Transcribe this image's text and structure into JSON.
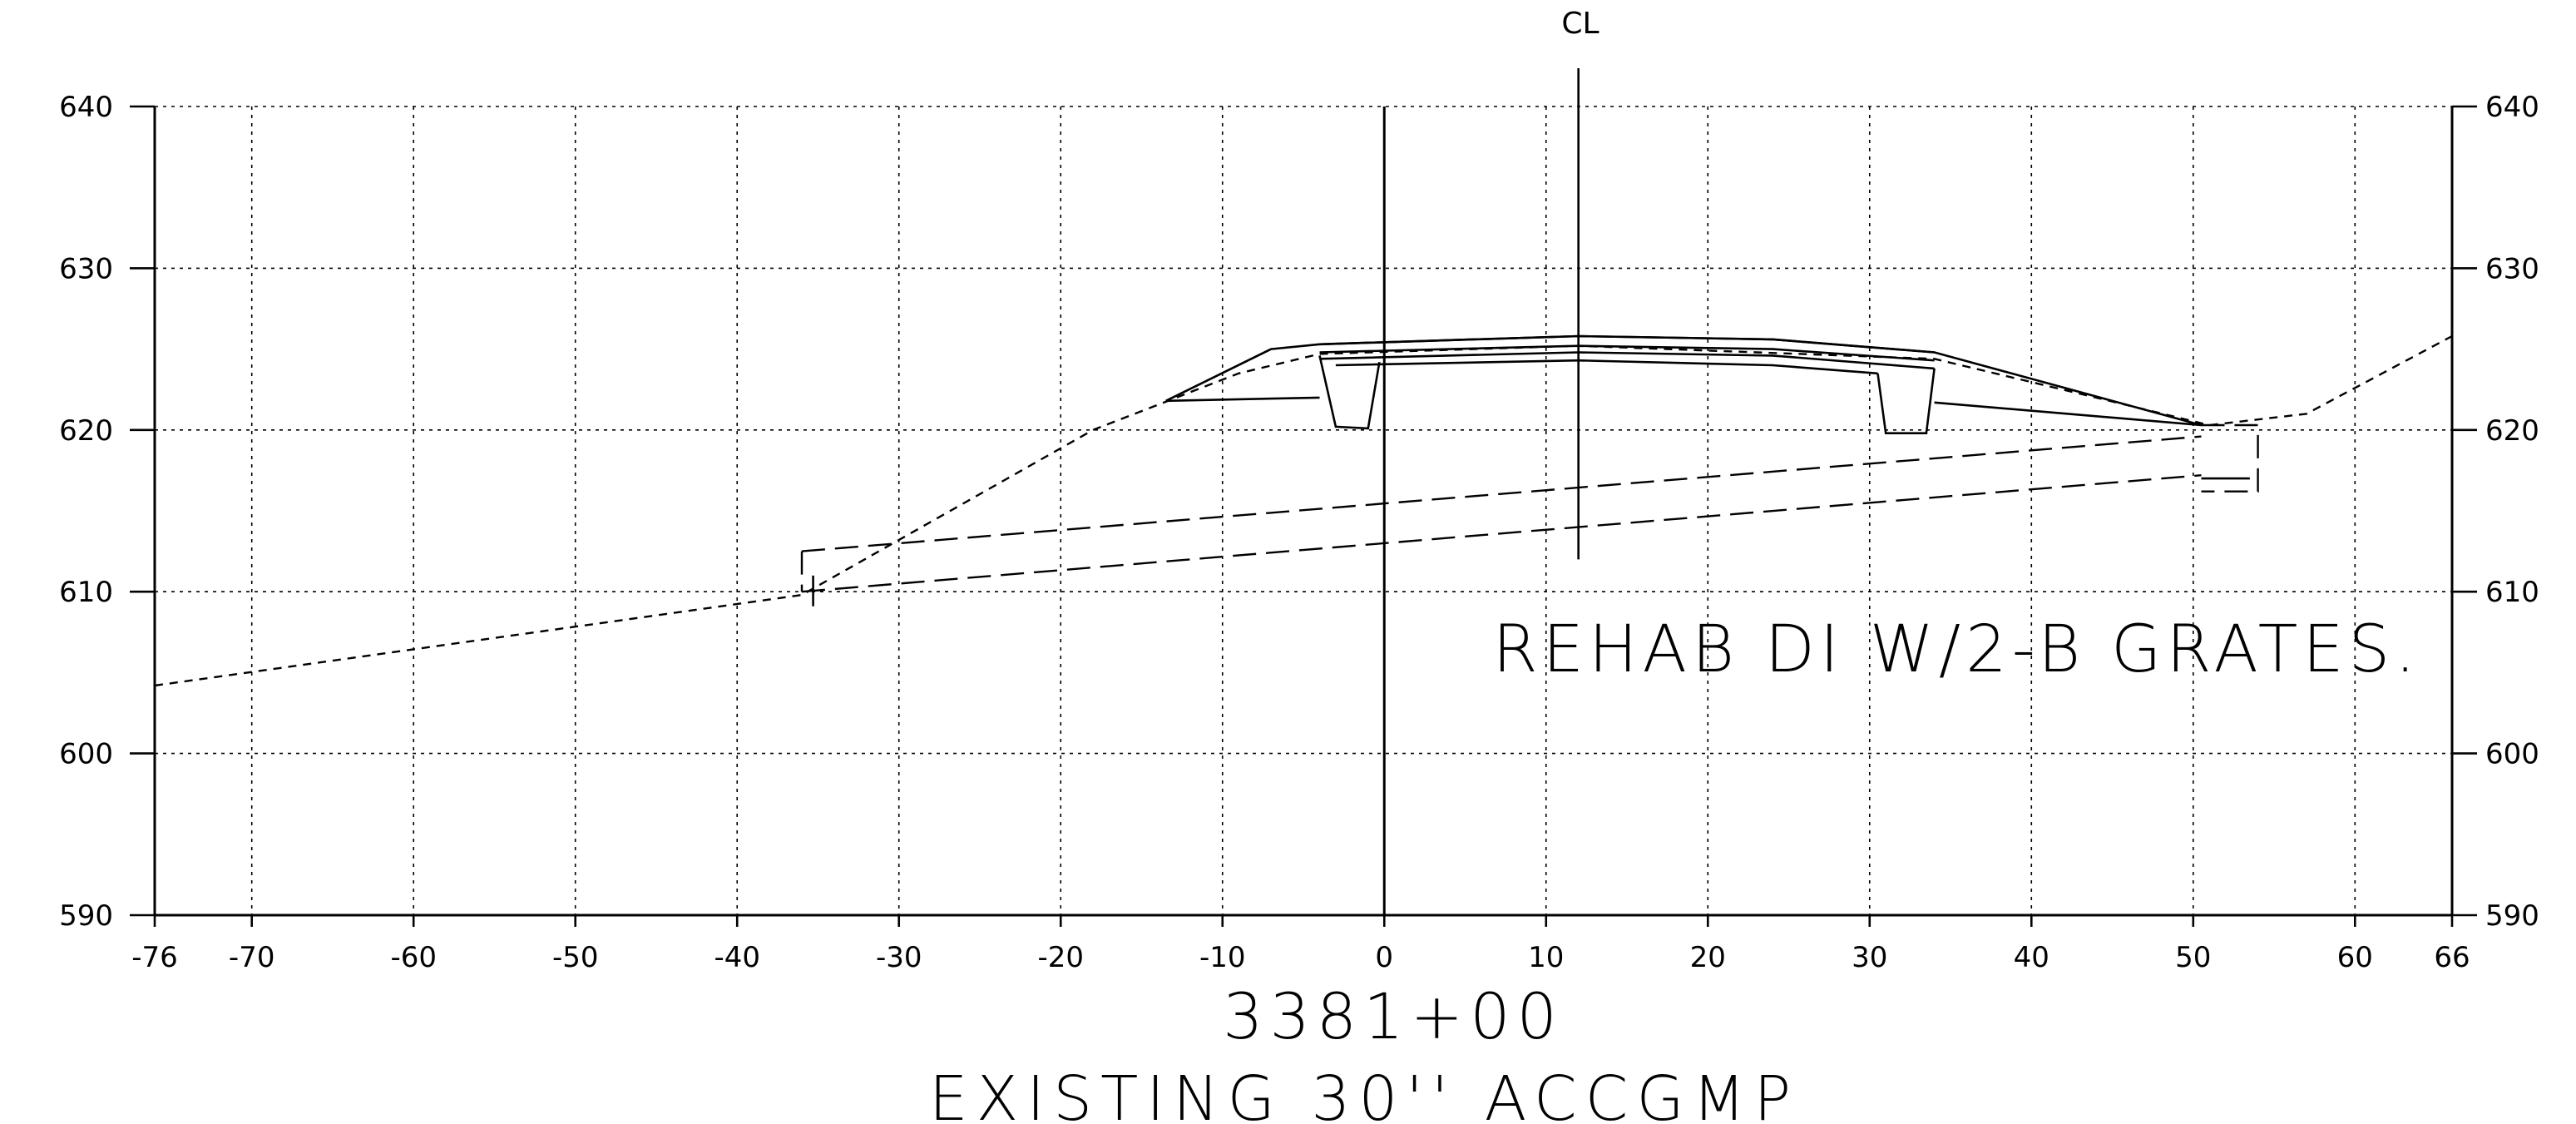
{
  "chart_data": {
    "type": "cross-section",
    "xlim": [
      -76,
      66
    ],
    "ylim": [
      590,
      640
    ],
    "x_ticks": [
      -76,
      -70,
      -60,
      -50,
      -40,
      -30,
      -20,
      -10,
      0,
      10,
      20,
      30,
      40,
      50,
      60,
      66
    ],
    "y_ticks": [
      590,
      600,
      610,
      620,
      630,
      640
    ],
    "grid": true,
    "centerline": {
      "label": "CL",
      "x": 12
    },
    "station": "3381+00",
    "caption": "EXISTING 30'' ACCGMP",
    "annotation": "REHAB DI W/2-B GRATES.",
    "existing_ground": [
      [
        -76,
        604.2
      ],
      [
        -36,
        609.8
      ],
      [
        -18,
        620
      ],
      [
        -9,
        623.5
      ],
      [
        -4,
        624.7
      ],
      [
        12,
        625.2
      ],
      [
        34,
        624.4
      ],
      [
        44,
        622
      ],
      [
        51,
        620.3
      ],
      [
        57,
        621
      ],
      [
        66,
        625.8
      ]
    ],
    "proposed_surface": [
      [
        -13.5,
        621.8
      ],
      [
        -7,
        625
      ],
      [
        -4,
        625.3
      ],
      [
        12,
        625.8
      ],
      [
        24,
        625.6
      ],
      [
        34,
        624.8
      ],
      [
        50.5,
        620.3
      ]
    ],
    "pavement_layers": [
      [
        [
          -4,
          625.3
        ],
        [
          12,
          625.8
        ],
        [
          24,
          625.6
        ],
        [
          34,
          624.8
        ]
      ],
      [
        [
          -4,
          624.8
        ],
        [
          12,
          625.2
        ],
        [
          24,
          625
        ],
        [
          34,
          624.3
        ]
      ],
      [
        [
          -4,
          624.4
        ],
        [
          12,
          624.8
        ],
        [
          24,
          624.6
        ],
        [
          34,
          623.8
        ]
      ],
      [
        [
          -3,
          624
        ],
        [
          12,
          624.3
        ],
        [
          24,
          624
        ],
        [
          30.5,
          623.5
        ]
      ]
    ],
    "shoulders": [
      [
        [
          -13.5,
          621.8
        ],
        [
          -4,
          622
        ]
      ],
      [
        [
          34,
          621.7
        ],
        [
          50.5,
          620.3
        ]
      ]
    ],
    "curbs": [
      [
        [
          -4,
          624.6
        ],
        [
          -3,
          620.2
        ],
        [
          -1,
          620.1
        ],
        [
          -0.3,
          624.2
        ]
      ],
      [
        [
          30.5,
          623.5
        ],
        [
          31,
          619.8
        ],
        [
          33.5,
          619.8
        ],
        [
          34,
          623.8
        ]
      ]
    ],
    "pipe": {
      "top": [
        [
          -36,
          612.5
        ],
        [
          50.5,
          619.6
        ]
      ],
      "invert": [
        [
          -36,
          610
        ],
        [
          50.5,
          617.2
        ]
      ]
    },
    "structures": [
      {
        "outline": [
          [
            -36,
            612.5
          ],
          [
            -36,
            610
          ]
        ],
        "tick": [
          [
            -35.3,
            611
          ],
          [
            -35.3,
            609.1
          ]
        ]
      },
      {
        "outline": [
          [
            50.5,
            620.3
          ],
          [
            54,
            620.3
          ],
          [
            54,
            616.2
          ],
          [
            50.5,
            616.2
          ]
        ],
        "tick": [
          [
            50.5,
            617
          ],
          [
            53.5,
            617
          ]
        ]
      }
    ]
  }
}
